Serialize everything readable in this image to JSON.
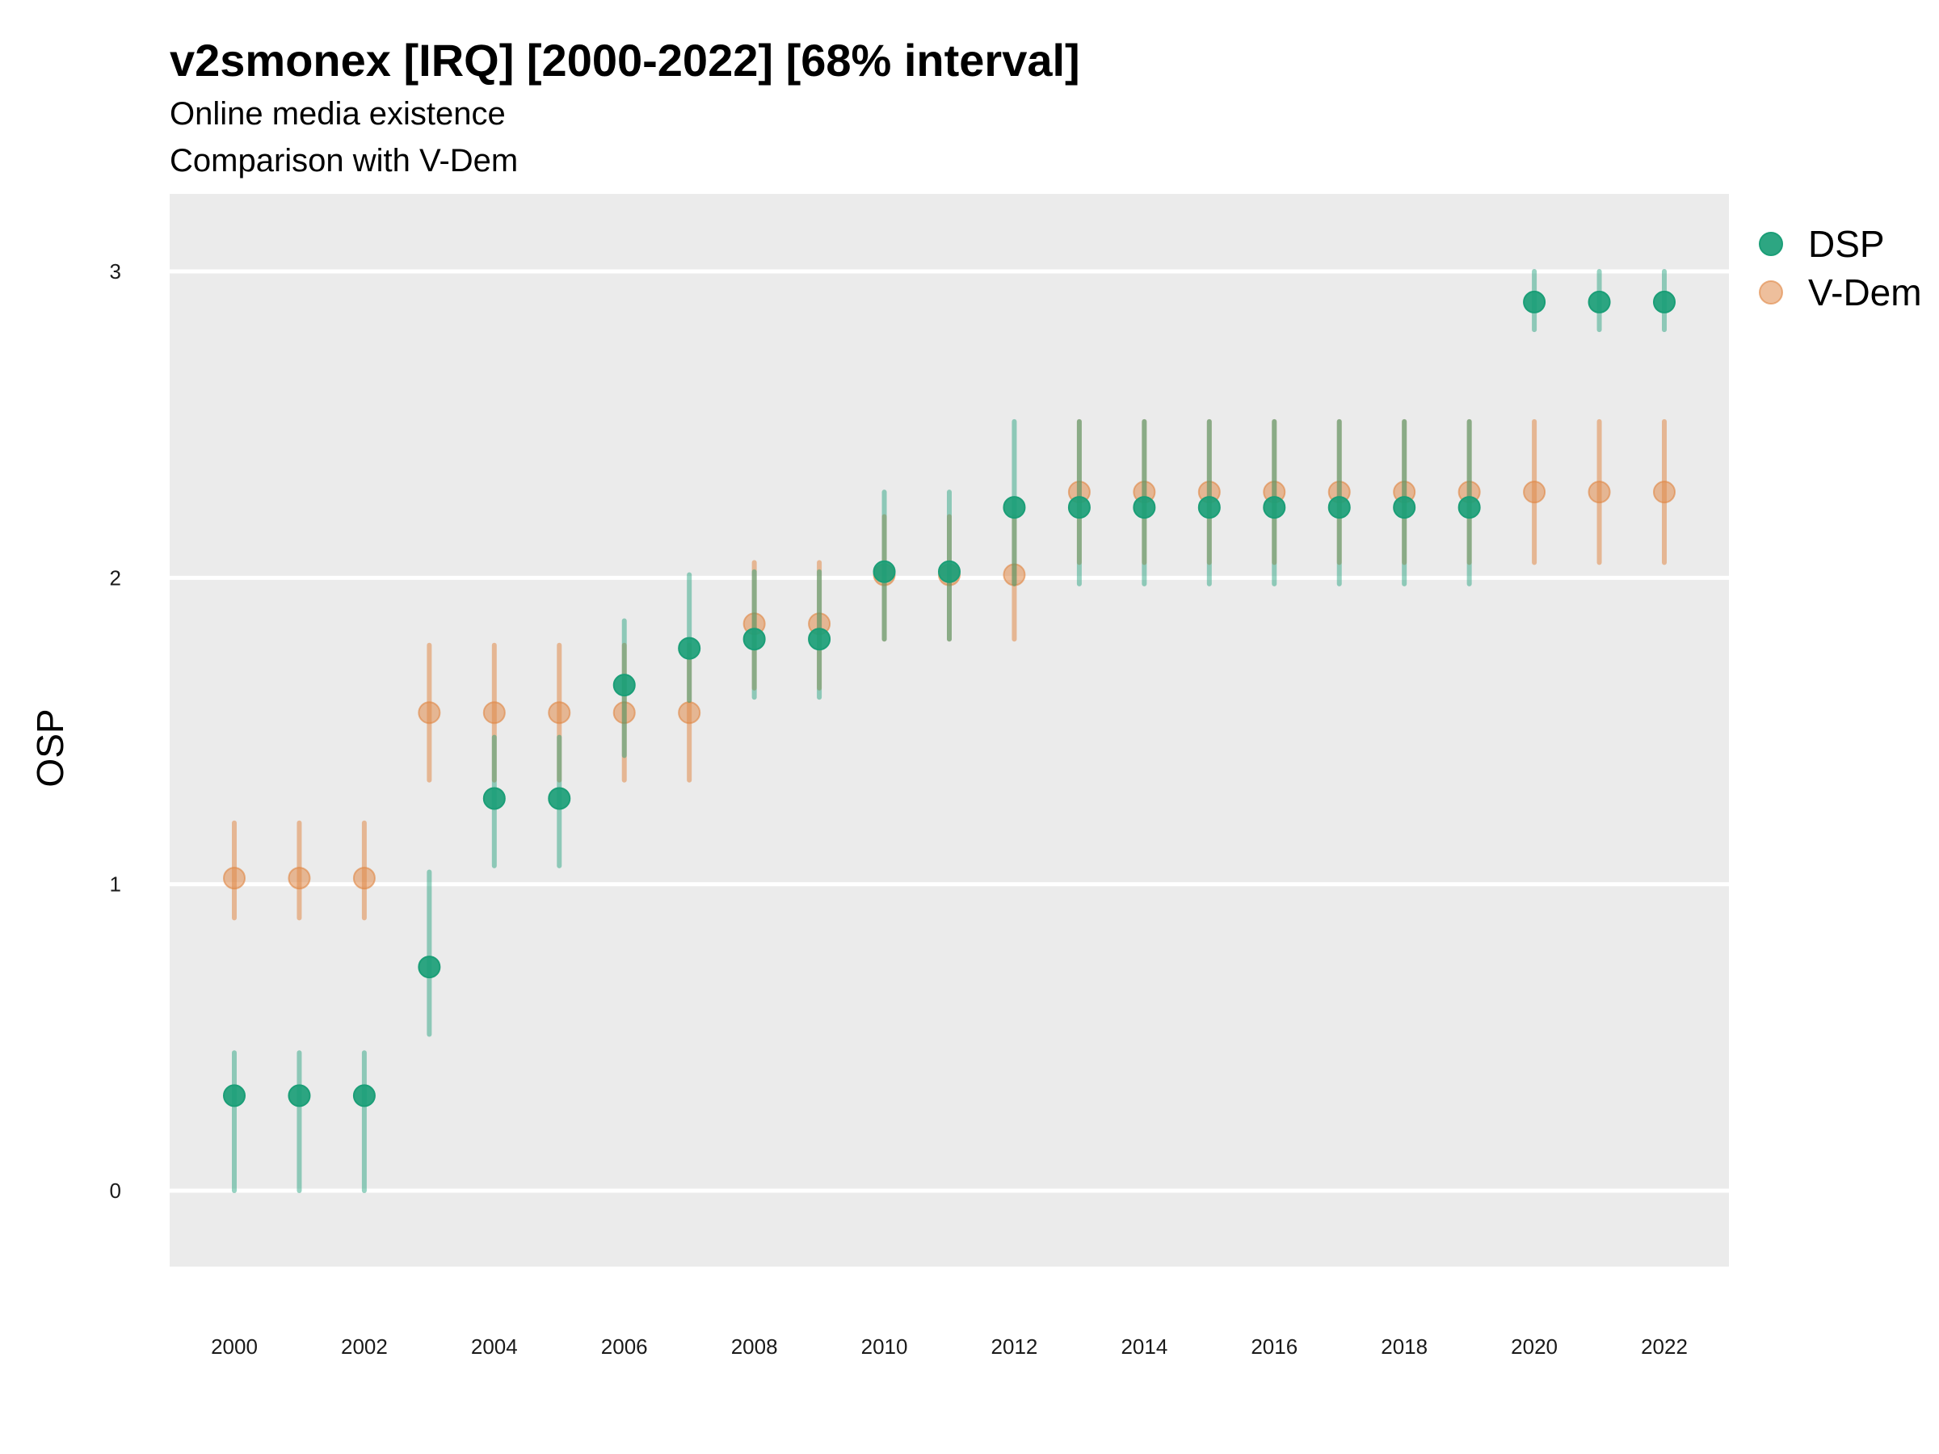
{
  "chart_data": {
    "type": "scatter",
    "title": "v2smonex [IRQ] [2000-2022] [68% interval]",
    "subtitle": "Online media existence",
    "caption": "Comparison with V-Dem",
    "xlabel": "",
    "ylabel": "OSP",
    "ylim": [
      -0.25,
      3.25
    ],
    "y_ticks": [
      0,
      1,
      2,
      3
    ],
    "x_ticks": [
      2000,
      2002,
      2004,
      2006,
      2008,
      2010,
      2012,
      2014,
      2016,
      2018,
      2020,
      2022
    ],
    "x": [
      2000,
      2001,
      2002,
      2003,
      2004,
      2005,
      2006,
      2007,
      2008,
      2009,
      2010,
      2011,
      2012,
      2013,
      2014,
      2015,
      2016,
      2017,
      2018,
      2019,
      2020,
      2021,
      2022
    ],
    "grid": true,
    "legend_position": "right",
    "series": [
      {
        "name": "V-Dem",
        "color": "#e08b4a",
        "values": [
          1.02,
          1.02,
          1.02,
          1.56,
          1.56,
          1.56,
          1.56,
          1.56,
          1.85,
          1.85,
          2.01,
          2.01,
          2.01,
          2.28,
          2.28,
          2.28,
          2.28,
          2.28,
          2.28,
          2.28,
          2.28,
          2.28,
          2.28
        ],
        "lower": [
          0.89,
          0.89,
          0.89,
          1.34,
          1.34,
          1.34,
          1.34,
          1.34,
          1.64,
          1.64,
          1.8,
          1.8,
          1.8,
          2.05,
          2.05,
          2.05,
          2.05,
          2.05,
          2.05,
          2.05,
          2.05,
          2.05,
          2.05
        ],
        "upper": [
          1.2,
          1.2,
          1.2,
          1.78,
          1.78,
          1.78,
          1.78,
          1.78,
          2.05,
          2.05,
          2.2,
          2.2,
          2.2,
          2.51,
          2.51,
          2.51,
          2.51,
          2.51,
          2.51,
          2.51,
          2.51,
          2.51,
          2.51
        ]
      },
      {
        "name": "DSP",
        "color": "#1b9e77",
        "values": [
          0.31,
          0.31,
          0.31,
          0.73,
          1.28,
          1.28,
          1.65,
          1.77,
          1.8,
          1.8,
          2.02,
          2.02,
          2.23,
          2.23,
          2.23,
          2.23,
          2.23,
          2.23,
          2.23,
          2.23,
          2.9,
          2.9,
          2.9
        ],
        "lower": [
          0.0,
          0.0,
          0.0,
          0.51,
          1.06,
          1.06,
          1.42,
          1.6,
          1.61,
          1.61,
          1.8,
          1.8,
          1.98,
          1.98,
          1.98,
          1.98,
          1.98,
          1.98,
          1.98,
          1.98,
          2.81,
          2.81,
          2.81
        ],
        "upper": [
          0.45,
          0.45,
          0.45,
          1.04,
          1.48,
          1.48,
          1.86,
          2.01,
          2.02,
          2.02,
          2.28,
          2.28,
          2.51,
          2.51,
          2.51,
          2.51,
          2.51,
          2.51,
          2.51,
          2.51,
          3.0,
          3.0,
          3.0
        ]
      }
    ]
  }
}
